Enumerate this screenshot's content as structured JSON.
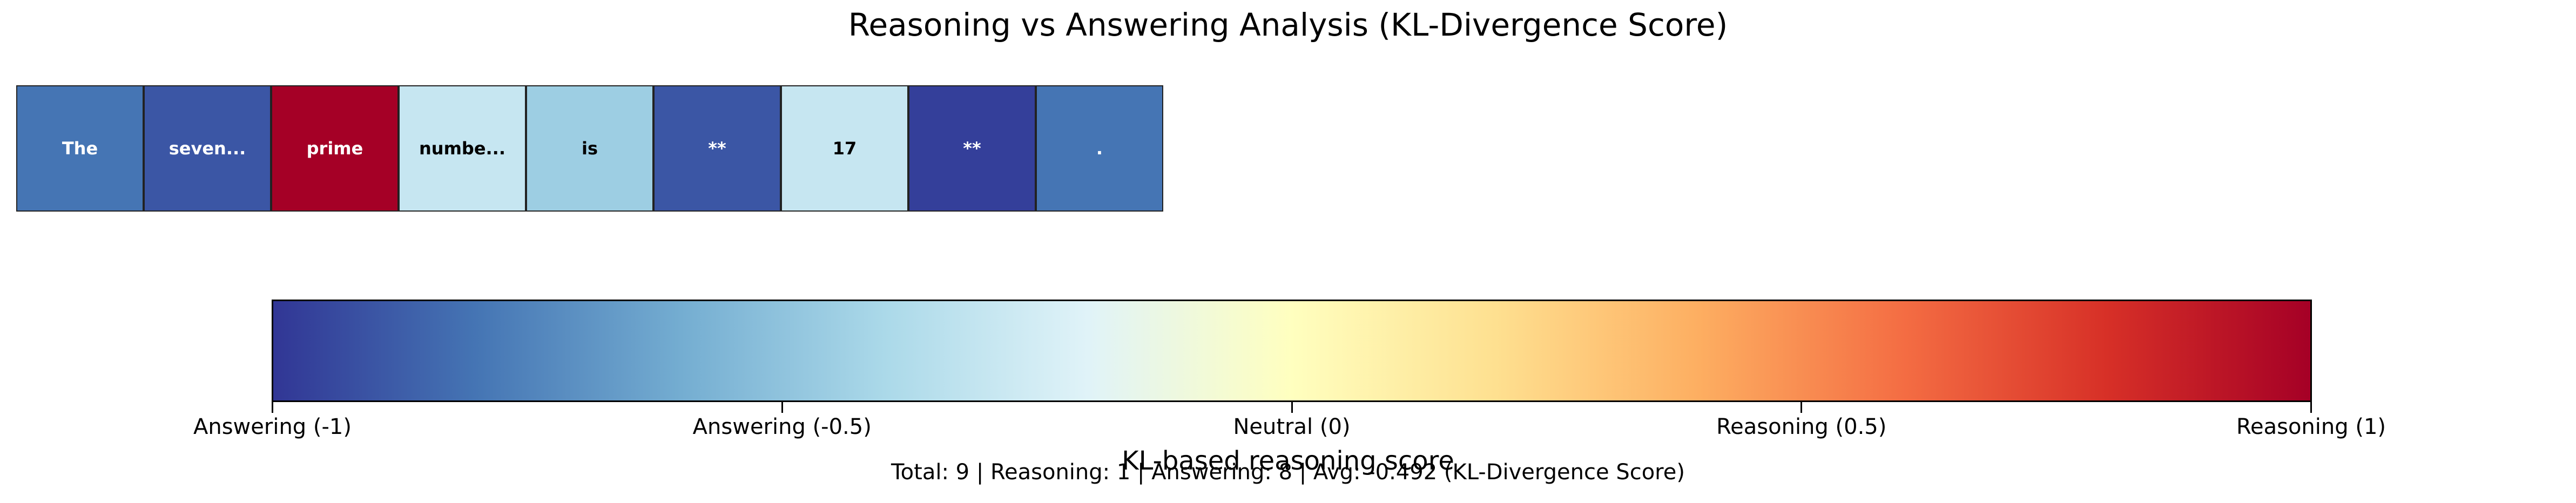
{
  "chart_data": {
    "type": "heatmap",
    "title": "Reasoning vs Answering Analysis (KL-Divergence Score)",
    "tokens": [
      {
        "label": "The",
        "score": -0.8
      },
      {
        "label": "seven...",
        "score": -0.9
      },
      {
        "label": "prime",
        "score": 1.0
      },
      {
        "label": "numbe...",
        "score": -0.3
      },
      {
        "label": "is",
        "score": -0.45
      },
      {
        "label": "**",
        "score": -0.9
      },
      {
        "label": "17",
        "score": -0.3
      },
      {
        "label": "**",
        "score": -0.97
      },
      {
        "label": ".",
        "score": -0.8
      }
    ],
    "colorbar": {
      "label": "KL-based reasoning score",
      "range": [
        -1,
        1
      ],
      "ticks": [
        {
          "value": -1,
          "label": "Answering (-1)"
        },
        {
          "value": -0.5,
          "label": "Answering (-0.5)"
        },
        {
          "value": 0,
          "label": "Neutral (0)"
        },
        {
          "value": 0.5,
          "label": "Reasoning (0.5)"
        },
        {
          "value": 1,
          "label": "Reasoning (1)"
        }
      ],
      "colormap": [
        "#313695",
        "#4575b4",
        "#74add1",
        "#abd9e9",
        "#e0f3f8",
        "#ffffbf",
        "#fee090",
        "#fdae61",
        "#f46d43",
        "#d73027",
        "#a50026"
      ]
    },
    "summary": "Total: 9 | Reasoning: 1 | Answering: 8 | Avg: -0.492 (KL-Divergence Score)"
  }
}
